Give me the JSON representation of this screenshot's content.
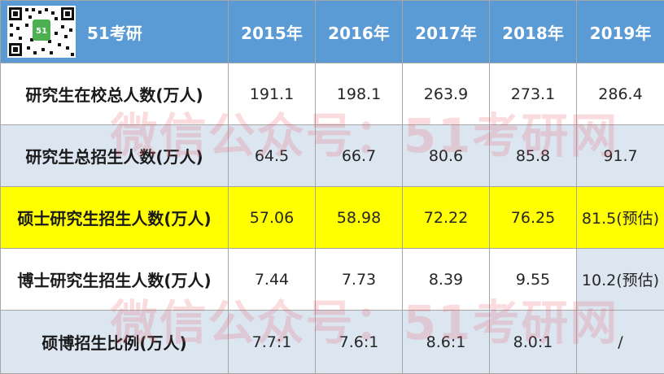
{
  "header": {
    "brand": "51考研",
    "qr_badge": "51",
    "years": [
      "2015年",
      "2016年",
      "2017年",
      "2018年",
      "2019年"
    ]
  },
  "rows": [
    {
      "label": "研究生在校总人数(万人)",
      "values": [
        "191.1",
        "198.1",
        "263.9",
        "273.1",
        "286.4"
      ]
    },
    {
      "label": "研究生总招生人数(万人)",
      "values": [
        "64.5",
        "66.7",
        "80.6",
        "85.8",
        "91.7"
      ]
    },
    {
      "label": "硕士研究生招生人数(万人)",
      "values": [
        "57.06",
        "58.98",
        "72.22",
        "76.25",
        "81.5(预估)"
      ]
    },
    {
      "label": "博士研究生招生人数(万人)",
      "values": [
        "7.44",
        "7.73",
        "8.39",
        "9.55",
        "10.2(预估)"
      ]
    },
    {
      "label": "硕博招生比例(万人)",
      "values": [
        "7.7:1",
        "7.6:1",
        "8.6:1",
        "8.0:1",
        "/"
      ]
    }
  ],
  "watermark": "微信公众号：51考研网",
  "colors": {
    "header_bg": "#5b9bd5",
    "row_alt_bg": "#dce6f1",
    "highlight_bg": "#ffff00",
    "watermark": "#e85f6e",
    "qr_badge_bg": "#4caf50"
  }
}
